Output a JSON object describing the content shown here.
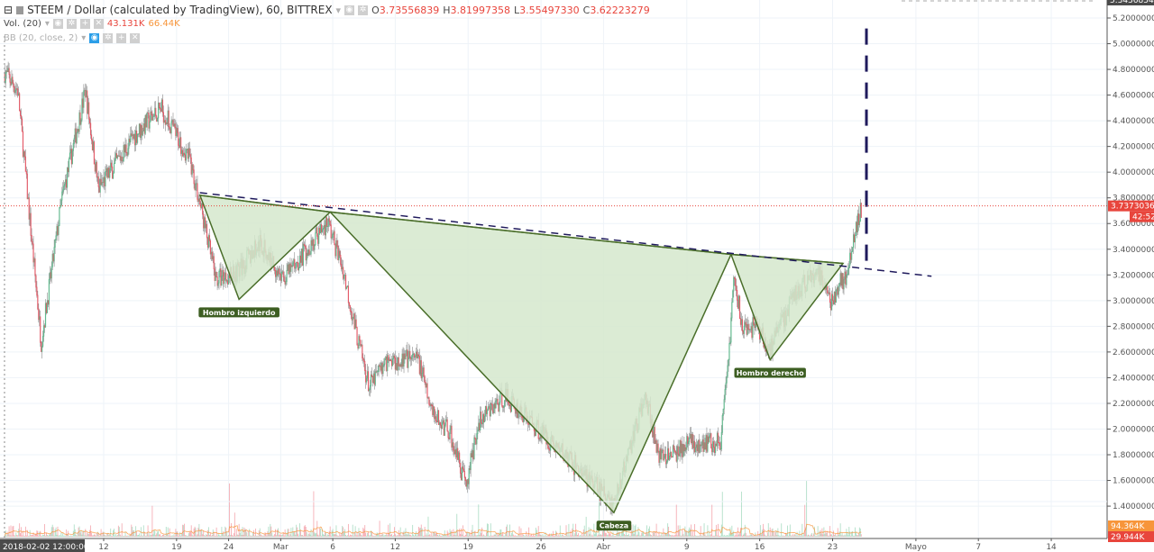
{
  "header": {
    "symbol_title": "STEEM / Dollar (calculated by TradingView), 60, BITTREX",
    "ohlc": {
      "o_label": "O",
      "o": "3.73556839",
      "h_label": "H",
      "h": "3.81997358",
      "l_label": "L",
      "l": "3.55497330",
      "c_label": "C",
      "c": "3.62223279"
    },
    "volume_indicator": {
      "label": "Vol. (20)",
      "value1": "43.131K",
      "value2": "66.44K"
    },
    "bb_indicator": {
      "label": "BB (20, close, 2)"
    }
  },
  "colors": {
    "up": "#53b987",
    "down": "#eb4d5c",
    "pattern_fill": "#d5e8cd",
    "pattern_line": "#4a6e2a",
    "neckline_dash": "#1f1a5c",
    "price_line": "#e8453c",
    "volume_ma": "#f7953a"
  },
  "chart_data": {
    "type": "candlestick",
    "title": "STEEM / Dollar (calculated by TradingView), 60, BITTREX",
    "interval": "60",
    "xlim": [
      "2018-02-02 12:00",
      "2018-05-19 00:00"
    ],
    "ylim": [
      1.25,
      5.34
    ],
    "grid": true,
    "y_ticks": [
      "5.20000000",
      "5.00000000",
      "4.80000000",
      "4.60000000",
      "4.40000000",
      "4.20000000",
      "4.00000000",
      "3.80000000",
      "3.60000000",
      "3.40000000",
      "3.20000000",
      "3.00000000",
      "2.80000000",
      "2.60000000",
      "2.40000000",
      "2.20000000",
      "2.00000000",
      "1.80000000",
      "1.60000000",
      "1.40000000"
    ],
    "x_ticks": [
      {
        "date": "2018-02-12",
        "label": "12"
      },
      {
        "date": "2018-02-19",
        "label": "19"
      },
      {
        "date": "2018-02-24",
        "label": "24"
      },
      {
        "date": "2018-03-01",
        "label": "Mar"
      },
      {
        "date": "2018-03-06",
        "label": "6"
      },
      {
        "date": "2018-03-12",
        "label": "12"
      },
      {
        "date": "2018-03-19",
        "label": "19"
      },
      {
        "date": "2018-03-26",
        "label": "26"
      },
      {
        "date": "2018-04-01",
        "label": "Abr"
      },
      {
        "date": "2018-04-09",
        "label": "9"
      },
      {
        "date": "2018-04-16",
        "label": "16"
      },
      {
        "date": "2018-04-23",
        "label": "23"
      },
      {
        "date": "2018-05-01",
        "label": "Mayo"
      },
      {
        "date": "2018-05-07",
        "label": "7"
      },
      {
        "date": "2018-05-14",
        "label": "14"
      }
    ],
    "x_cursor_label": "2018-02-02 12:00:00",
    "price_path": [
      [
        "2018-02-02 12:00",
        4.78
      ],
      [
        "2018-02-03 18:00",
        4.64
      ],
      [
        "2018-02-06 00:00",
        2.68
      ],
      [
        "2018-02-08 00:00",
        3.8
      ],
      [
        "2018-02-10 06:00",
        4.64
      ],
      [
        "2018-02-11 12:00",
        3.87
      ],
      [
        "2018-02-15 00:00",
        4.29
      ],
      [
        "2018-02-17 12:00",
        4.5
      ],
      [
        "2018-02-20 06:00",
        4.11
      ],
      [
        "2018-02-21 06:00",
        3.76
      ],
      [
        "2018-02-22 18:00",
        3.17
      ],
      [
        "2018-02-25 00:00",
        3.24
      ],
      [
        "2018-02-27 00:00",
        3.45
      ],
      [
        "2018-03-01 06:00",
        3.17
      ],
      [
        "2018-03-04 00:00",
        3.45
      ],
      [
        "2018-03-05 12:00",
        3.62
      ],
      [
        "2018-03-07 00:00",
        3.24
      ],
      [
        "2018-03-08 06:00",
        2.75
      ],
      [
        "2018-03-09 12:00",
        2.33
      ],
      [
        "2018-03-11 06:00",
        2.54
      ],
      [
        "2018-03-14 06:00",
        2.54
      ],
      [
        "2018-03-15 12:00",
        2.12
      ],
      [
        "2018-03-17 06:00",
        1.98
      ],
      [
        "2018-03-18 18:00",
        1.55
      ],
      [
        "2018-03-20 00:00",
        2.05
      ],
      [
        "2018-03-22 12:00",
        2.26
      ],
      [
        "2018-03-26 00:00",
        1.98
      ],
      [
        "2018-03-29 12:00",
        1.7
      ],
      [
        "2018-04-02 00:00",
        1.41
      ],
      [
        "2018-04-03 12:00",
        1.84
      ],
      [
        "2018-04-05 00:00",
        2.26
      ],
      [
        "2018-04-06 12:00",
        1.76
      ],
      [
        "2018-04-09 18:00",
        1.9
      ],
      [
        "2018-04-12 06:00",
        1.9
      ],
      [
        "2018-04-13 00:00",
        2.54
      ],
      [
        "2018-04-13 12:00",
        3.17
      ],
      [
        "2018-04-14 12:00",
        2.75
      ],
      [
        "2018-04-15 18:00",
        2.82
      ],
      [
        "2018-04-17 00:00",
        2.61
      ],
      [
        "2018-04-19 06:00",
        3.03
      ],
      [
        "2018-04-21 12:00",
        3.24
      ],
      [
        "2018-04-22 18:00",
        3.0
      ],
      [
        "2018-04-24 12:00",
        3.24
      ],
      [
        "2018-04-25 18:00",
        3.73
      ]
    ],
    "current_price": {
      "value": 3.7373036,
      "label": "3.73730360",
      "countdown": "42:52"
    },
    "top_price_label": "5.34368540",
    "volume_labels": {
      "volume": "29.944K",
      "volume_ma": "94.364K"
    },
    "pattern": {
      "name_points": [
        {
          "date": "2018-02-21 06:00",
          "price": 3.82
        },
        {
          "date": "2018-02-25 00:00",
          "price": 3.01,
          "label": "Hombro izquierdo"
        },
        {
          "date": "2018-03-05 18:00",
          "price": 3.69
        },
        {
          "date": "2018-04-02 00:00",
          "price": 1.35,
          "label": "Cabeza"
        },
        {
          "date": "2018-04-13 06:00",
          "price": 3.36
        },
        {
          "date": "2018-04-17 00:00",
          "price": 2.54,
          "label": "Hombro derecho"
        },
        {
          "date": "2018-04-24 00:00",
          "price": 3.29
        }
      ],
      "neckline_dashed": [
        [
          "2018-02-21 06:00",
          3.84
        ],
        [
          "2018-05-02 12:00",
          3.19
        ]
      ],
      "target_vertical_dashed": [
        [
          "2018-04-26 06:00",
          3.31
        ],
        [
          "2018-04-26 06:00",
          5.14
        ]
      ]
    }
  }
}
